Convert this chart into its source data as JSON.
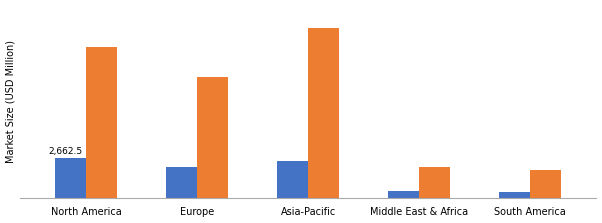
{
  "categories": [
    "North America",
    "Europe",
    "Asia-Pacific",
    "Middle East & Africa",
    "South America"
  ],
  "values_2023": [
    2662.5,
    2100,
    2500,
    430,
    370
  ],
  "values_2032": [
    10200,
    8200,
    11500,
    2100,
    1850
  ],
  "bar_color_2023": "#4472C4",
  "bar_color_2032": "#ED7D31",
  "ylabel": "Market Size (USD Million)",
  "annotation_text": "2,662.5",
  "background_color": "#ffffff",
  "bar_width": 0.28,
  "ylim": [
    0,
    13000
  ],
  "figsize": [
    6.02,
    2.23
  ],
  "dpi": 100
}
